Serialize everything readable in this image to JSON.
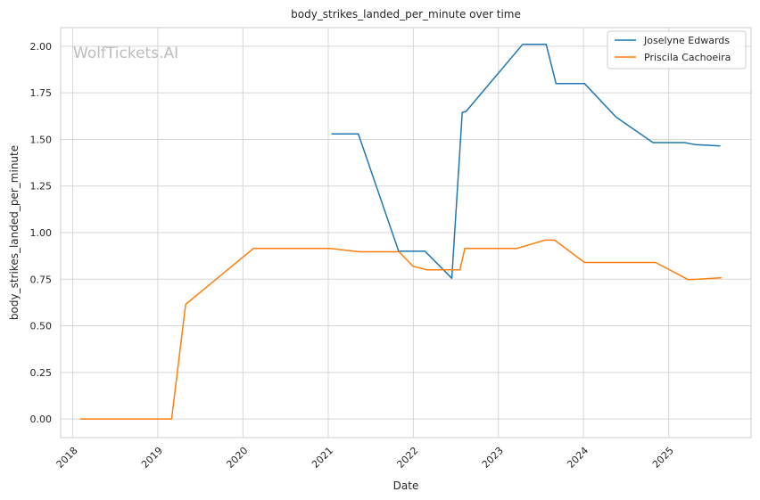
{
  "chart_data": {
    "type": "line",
    "title": "body_strikes_landed_per_minute over time",
    "xlabel": "Date",
    "ylabel": "body_strikes_landed_per_minute",
    "watermark": "WolfTickets.AI",
    "x_ticks": [
      "2018",
      "2019",
      "2020",
      "2021",
      "2022",
      "2023",
      "2024",
      "2025"
    ],
    "y_ticks": [
      "0.00",
      "0.25",
      "0.50",
      "0.75",
      "1.00",
      "1.25",
      "1.50",
      "1.75",
      "2.00"
    ],
    "xlim": [
      "2017-11-10",
      "2025-12-20"
    ],
    "ylim": [
      -0.1,
      2.1
    ],
    "grid": true,
    "legend_position": "top-right",
    "series": [
      {
        "name": "Joselyne Edwards",
        "color": "#1f77b4",
        "points": [
          [
            "2021-01-15",
            1.53
          ],
          [
            "2021-05-10",
            1.53
          ],
          [
            "2021-10-30",
            0.9
          ],
          [
            "2022-02-20",
            0.9
          ],
          [
            "2022-06-15",
            0.755
          ],
          [
            "2022-07-30",
            1.645
          ],
          [
            "2022-08-15",
            1.65
          ],
          [
            "2023-04-15",
            2.01
          ],
          [
            "2023-07-25",
            2.01
          ],
          [
            "2023-09-05",
            1.8
          ],
          [
            "2024-01-05",
            1.8
          ],
          [
            "2024-05-20",
            1.62
          ],
          [
            "2024-10-25",
            1.483
          ],
          [
            "2025-03-10",
            1.483
          ],
          [
            "2025-04-25",
            1.472
          ],
          [
            "2025-08-10",
            1.465
          ]
        ]
      },
      {
        "name": "Priscila Cachoeira",
        "color": "#ff7f0e",
        "points": [
          [
            "2018-02-01",
            0.0
          ],
          [
            "2019-03-01",
            0.0
          ],
          [
            "2019-04-30",
            0.615
          ],
          [
            "2020-02-15",
            0.915
          ],
          [
            "2021-01-10",
            0.915
          ],
          [
            "2021-05-15",
            0.897
          ],
          [
            "2021-11-01",
            0.897
          ],
          [
            "2021-12-30",
            0.82
          ],
          [
            "2022-03-01",
            0.8
          ],
          [
            "2022-07-20",
            0.8
          ],
          [
            "2022-08-10",
            0.915
          ],
          [
            "2023-03-20",
            0.915
          ],
          [
            "2023-07-20",
            0.96
          ],
          [
            "2023-08-30",
            0.96
          ],
          [
            "2024-01-05",
            0.84
          ],
          [
            "2024-11-05",
            0.84
          ],
          [
            "2025-03-25",
            0.748
          ],
          [
            "2025-05-10",
            0.75
          ],
          [
            "2025-08-15",
            0.758
          ]
        ]
      }
    ]
  }
}
